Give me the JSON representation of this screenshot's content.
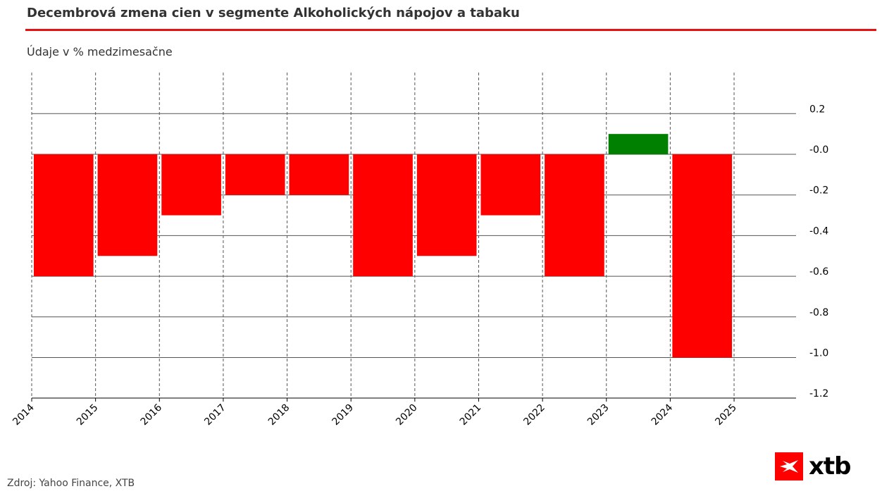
{
  "title": "Decembrová zmena cien v segmente Alkoholických nápojov a tabaku",
  "subtitle": "Údaje v % medzimesačne",
  "source": "Zdroj: Yahoo Finance, XTB",
  "logo": {
    "text": "xtb",
    "color": "#ff0000"
  },
  "chart_data": {
    "type": "bar",
    "categories": [
      "2014",
      "2015",
      "2016",
      "2017",
      "2018",
      "2019",
      "2020",
      "2021",
      "2022",
      "2023",
      "2024"
    ],
    "values": [
      -0.6,
      -0.5,
      -0.3,
      -0.2,
      -0.2,
      -0.6,
      -0.5,
      -0.3,
      -0.6,
      0.1,
      -1.0
    ],
    "x_ticks": [
      "2014",
      "2015",
      "2016",
      "2017",
      "2018",
      "2019",
      "2020",
      "2021",
      "2022",
      "2023",
      "2024",
      "2025"
    ],
    "y_ticks": [
      0.2,
      0.0,
      -0.2,
      -0.4,
      -0.6,
      -0.8,
      -1.0,
      -1.2
    ],
    "y_tick_labels": [
      "0.2",
      "-0.0",
      "-0.2",
      "-0.4",
      "-0.6",
      "-0.8",
      "-1.0",
      "-1.2"
    ],
    "ylim": [
      -1.2,
      0.4
    ],
    "colors": {
      "negative": "#ff0000",
      "positive": "#008000"
    },
    "grid": true,
    "y_axis_side": "right"
  }
}
